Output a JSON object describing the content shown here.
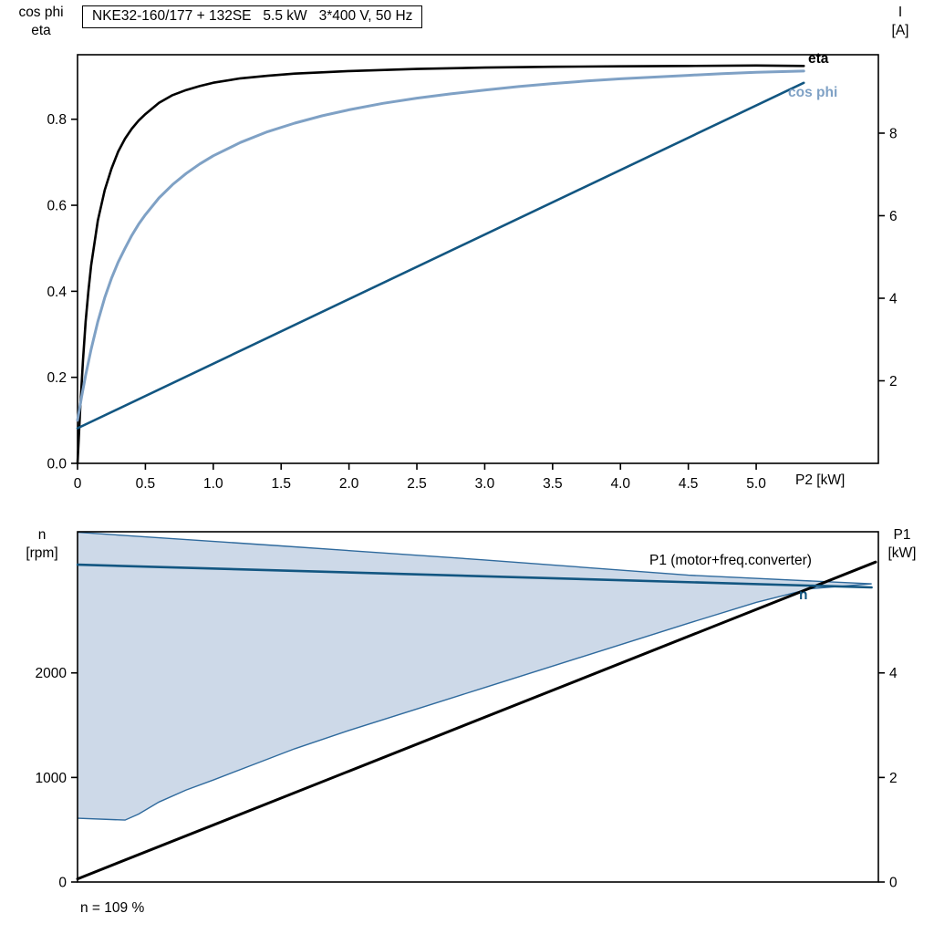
{
  "title": "NKE32-160/177 + 132SE   5.5 kW   3*400 V, 50 Hz",
  "colors": {
    "eta": "#000000",
    "cos_phi": "#7fa1c5",
    "current": "#125681",
    "n": "#125681",
    "p1": "#000000",
    "area_fill": "#cdd9e8",
    "area_stroke": "#2f6a9d",
    "axis": "#000000"
  },
  "chart_data": [
    {
      "type": "line",
      "title": "NKE32-160/177 + 132SE   5.5 kW   3*400 V, 50 Hz",
      "x_axis": {
        "label": "P2 [kW]",
        "lim": [
          0,
          5.9
        ],
        "ticks": [
          {
            "v": 0,
            "t": "0"
          },
          {
            "v": 0.5,
            "t": "0.5"
          },
          {
            "v": 1.0,
            "t": "1.0"
          },
          {
            "v": 1.5,
            "t": "1.5"
          },
          {
            "v": 2.0,
            "t": "2.0"
          },
          {
            "v": 2.5,
            "t": "2.5"
          },
          {
            "v": 3.0,
            "t": "3.0"
          },
          {
            "v": 3.5,
            "t": "3.5"
          },
          {
            "v": 4.0,
            "t": "4.0"
          },
          {
            "v": 4.5,
            "t": "4.5"
          },
          {
            "v": 5.0,
            "t": "5.0"
          }
        ]
      },
      "left_axis": {
        "label": [
          "cos phi",
          "eta"
        ],
        "lim": [
          0,
          0.95
        ],
        "ticks": [
          {
            "v": 0.0,
            "t": "0.0"
          },
          {
            "v": 0.2,
            "t": "0.2"
          },
          {
            "v": 0.4,
            "t": "0.4"
          },
          {
            "v": 0.6,
            "t": "0.6"
          },
          {
            "v": 0.8,
            "t": "0.8"
          }
        ]
      },
      "right_axis": {
        "label": [
          "I",
          "[A]"
        ],
        "lim": [
          0,
          9.9
        ],
        "ticks": [
          {
            "v": 2,
            "t": "2"
          },
          {
            "v": 4,
            "t": "4"
          },
          {
            "v": 6,
            "t": "6"
          },
          {
            "v": 8,
            "t": "8"
          }
        ]
      },
      "series": [
        {
          "name": "eta",
          "axis": "left",
          "color": "#000000",
          "width": 2.6,
          "points": [
            [
              0,
              0
            ],
            [
              0.02,
              0.13
            ],
            [
              0.04,
              0.24
            ],
            [
              0.06,
              0.33
            ],
            [
              0.08,
              0.4
            ],
            [
              0.1,
              0.46
            ],
            [
              0.15,
              0.565
            ],
            [
              0.2,
              0.635
            ],
            [
              0.25,
              0.685
            ],
            [
              0.3,
              0.725
            ],
            [
              0.35,
              0.755
            ],
            [
              0.4,
              0.778
            ],
            [
              0.45,
              0.797
            ],
            [
              0.5,
              0.812
            ],
            [
              0.6,
              0.838
            ],
            [
              0.7,
              0.856
            ],
            [
              0.8,
              0.868
            ],
            [
              0.9,
              0.877
            ],
            [
              1.0,
              0.885
            ],
            [
              1.2,
              0.895
            ],
            [
              1.4,
              0.901
            ],
            [
              1.6,
              0.906
            ],
            [
              1.8,
              0.909
            ],
            [
              2.0,
              0.912
            ],
            [
              2.5,
              0.917
            ],
            [
              3.0,
              0.92
            ],
            [
              3.5,
              0.922
            ],
            [
              4.0,
              0.923
            ],
            [
              4.5,
              0.924
            ],
            [
              5.0,
              0.925
            ],
            [
              5.35,
              0.924
            ]
          ]
        },
        {
          "name": "cos phi",
          "axis": "left",
          "color": "#7fa1c5",
          "width": 3,
          "points": [
            [
              0,
              0.1
            ],
            [
              0.03,
              0.155
            ],
            [
              0.06,
              0.205
            ],
            [
              0.1,
              0.265
            ],
            [
              0.15,
              0.33
            ],
            [
              0.2,
              0.385
            ],
            [
              0.25,
              0.43
            ],
            [
              0.3,
              0.468
            ],
            [
              0.35,
              0.5
            ],
            [
              0.4,
              0.53
            ],
            [
              0.45,
              0.556
            ],
            [
              0.5,
              0.578
            ],
            [
              0.6,
              0.617
            ],
            [
              0.7,
              0.648
            ],
            [
              0.8,
              0.674
            ],
            [
              0.9,
              0.696
            ],
            [
              1.0,
              0.715
            ],
            [
              1.2,
              0.746
            ],
            [
              1.4,
              0.771
            ],
            [
              1.6,
              0.791
            ],
            [
              1.8,
              0.808
            ],
            [
              2.0,
              0.822
            ],
            [
              2.25,
              0.837
            ],
            [
              2.5,
              0.849
            ],
            [
              2.75,
              0.859
            ],
            [
              3.0,
              0.868
            ],
            [
              3.25,
              0.876
            ],
            [
              3.5,
              0.883
            ],
            [
              3.75,
              0.889
            ],
            [
              4.0,
              0.894
            ],
            [
              4.25,
              0.898
            ],
            [
              4.5,
              0.902
            ],
            [
              4.75,
              0.906
            ],
            [
              5.0,
              0.909
            ],
            [
              5.35,
              0.912
            ]
          ]
        },
        {
          "name": "I",
          "axis": "right",
          "color": "#125681",
          "width": 2.6,
          "points": [
            [
              0,
              0.85
            ],
            [
              5.35,
              9.22
            ]
          ]
        }
      ]
    },
    {
      "type": "line",
      "x_axis": {
        "label": "",
        "lim": [
          0,
          5.9
        ],
        "ticks": []
      },
      "left_axis": {
        "label": [
          "n",
          "[rpm]"
        ],
        "lim": [
          0,
          3350
        ],
        "ticks": [
          {
            "v": 0,
            "t": "0"
          },
          {
            "v": 1000,
            "t": "1000"
          },
          {
            "v": 2000,
            "t": "2000"
          }
        ]
      },
      "right_axis": {
        "label": [
          "P1",
          "[kW]"
        ],
        "lim": [
          0,
          6.7
        ],
        "ticks": [
          {
            "v": 0,
            "t": "0"
          },
          {
            "v": 2,
            "t": "2"
          },
          {
            "v": 4,
            "t": "4"
          }
        ]
      },
      "area": {
        "name": "speed-control-range",
        "fill": "#cdd9e8",
        "stroke": "#2f6a9d",
        "upper": [
          [
            0,
            3345
          ],
          [
            1.5,
            3215
          ],
          [
            3.0,
            3080
          ],
          [
            4.5,
            2935
          ],
          [
            5.85,
            2852
          ]
        ],
        "lower": [
          [
            0,
            610
          ],
          [
            0.35,
            592
          ],
          [
            0.45,
            650
          ],
          [
            0.6,
            765
          ],
          [
            0.8,
            880
          ],
          [
            1.0,
            975
          ],
          [
            1.3,
            1125
          ],
          [
            1.6,
            1275
          ],
          [
            2.0,
            1450
          ],
          [
            2.5,
            1655
          ],
          [
            3.0,
            1860
          ],
          [
            3.5,
            2065
          ],
          [
            4.0,
            2270
          ],
          [
            4.5,
            2475
          ],
          [
            5.0,
            2675
          ],
          [
            5.4,
            2805
          ],
          [
            5.85,
            2852
          ]
        ]
      },
      "series": [
        {
          "name": "P1 (motor+freq.converter)",
          "axis": "right",
          "color": "#000000",
          "width": 3,
          "points": [
            [
              0,
              0.06
            ],
            [
              5.88,
              6.12
            ]
          ]
        },
        {
          "name": "n",
          "axis": "left",
          "color": "#125681",
          "width": 2.6,
          "points": [
            [
              0,
              3035
            ],
            [
              5.85,
              2818
            ]
          ]
        }
      ],
      "annotation": "n = 109 %"
    }
  ]
}
